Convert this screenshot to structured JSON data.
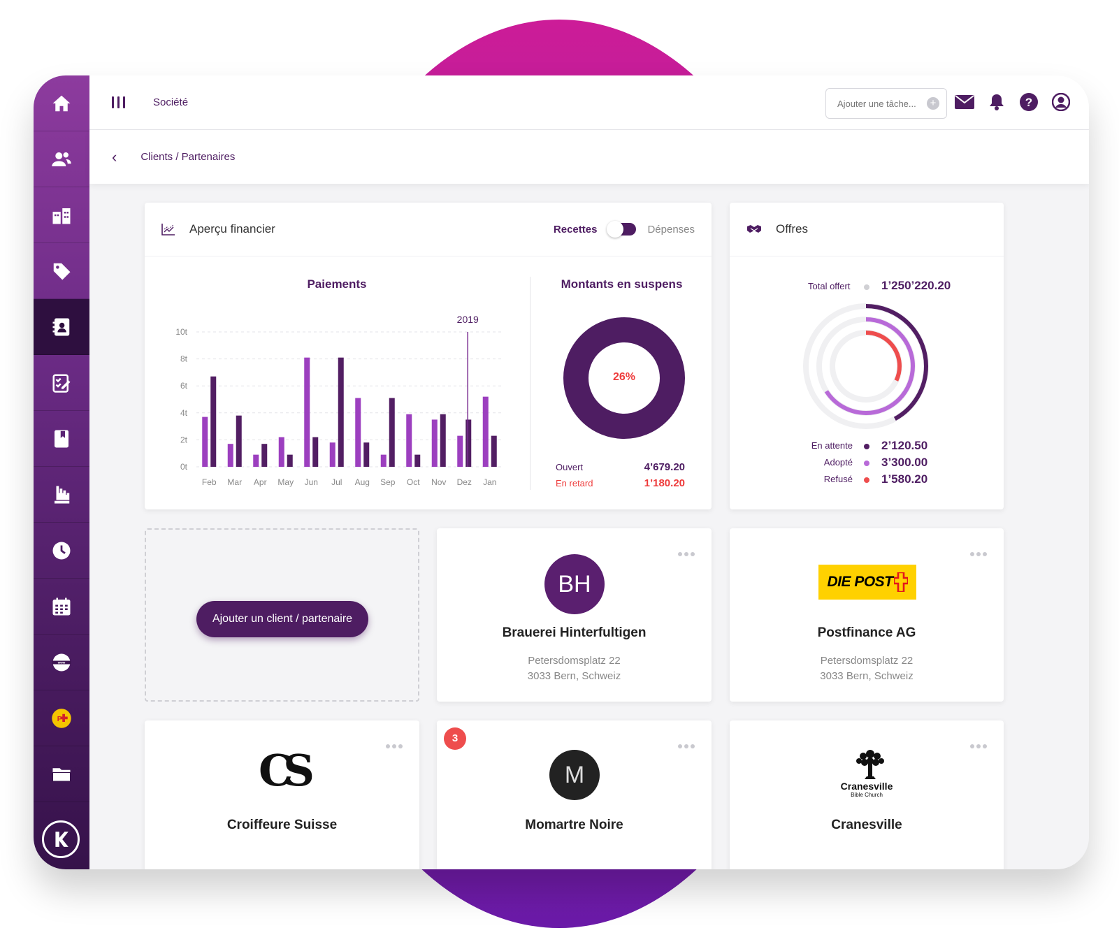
{
  "header": {
    "menu_label": "Société",
    "task_placeholder": "Ajouter une tâche..."
  },
  "topicons": [
    "mail-icon",
    "bell-icon",
    "help-icon",
    "user-icon"
  ],
  "sidebar": {
    "items": [
      "home-icon",
      "contacts-icon",
      "buildings-icon",
      "tag-icon",
      "address-book-icon",
      "checklist-icon",
      "book-icon",
      "hand-icon",
      "clock-icon",
      "calendar-icon",
      "globe-icon",
      "postfinance-icon",
      "folder-icon"
    ],
    "active_index": 4,
    "logo_letter": "K"
  },
  "breadcrumb": "Clients / Partenaires",
  "finance": {
    "title": "Aperçu financier",
    "toggle_on": "Recettes",
    "toggle_off": "Dépenses",
    "payments_title": "Paiements",
    "pending_title": "Montants en suspens",
    "pending_percent": "26%",
    "open_label": "Ouvert",
    "open_value": "4’679.20",
    "late_label": "En retard",
    "late_value": "1’180.20"
  },
  "chart_data": {
    "type": "bar",
    "categories": [
      "Feb",
      "Mar",
      "Apr",
      "May",
      "Jun",
      "Jul",
      "Aug",
      "Sep",
      "Oct",
      "Nov",
      "Dez",
      "Jan"
    ],
    "series": [
      {
        "values": [
          3.7,
          1.7,
          0.9,
          2.2,
          8.1,
          1.8,
          5.1,
          0.9,
          3.9,
          3.5,
          2.3,
          5.2
        ],
        "color": "#9c3fbf"
      },
      {
        "values": [
          6.7,
          3.8,
          1.7,
          0.9,
          2.2,
          8.1,
          1.8,
          5.1,
          0.9,
          3.9,
          3.5,
          2.3
        ],
        "color": "#521e63"
      }
    ],
    "yticks": [
      "0t",
      "2t",
      "4t",
      "6t",
      "8t",
      "10t"
    ],
    "ylim": [
      0,
      10
    ],
    "marker_label": "2019",
    "grid": true
  },
  "offers": {
    "title": "Offres",
    "total_label": "Total offert",
    "total_value": "1’250’220.20",
    "rows": [
      {
        "label": "En attente",
        "value": "2’120.50",
        "color": "#521e63",
        "fraction": 0.42
      },
      {
        "label": "Adopté",
        "value": "3’300.00",
        "color": "#b86ad8",
        "fraction": 0.66
      },
      {
        "label": "Refusé",
        "value": "1’580.20",
        "color": "#ee4d4d",
        "fraction": 0.32
      }
    ],
    "colors": {
      "total_dot": "#d0d0d4"
    }
  },
  "add_button": "Ajouter un client / partenaire",
  "clients": [
    {
      "logo": "BH",
      "name": "Brauerei Hinterfultigen",
      "addr1": "Petersdomsplatz 22",
      "addr2": "3033 Bern, Schweiz"
    },
    {
      "logo": "DIE POST",
      "name": "Postfinance AG",
      "addr1": "Petersdomsplatz 22",
      "addr2": "3033 Bern, Schweiz"
    },
    {
      "logo": "CS",
      "name": "Croiffeure Suisse"
    },
    {
      "logo": "M",
      "name": "Momartre Noire",
      "badge": "3"
    },
    {
      "logo": "Cranesville",
      "logo_sub": "Bible Church",
      "name": "Cranesville"
    }
  ]
}
